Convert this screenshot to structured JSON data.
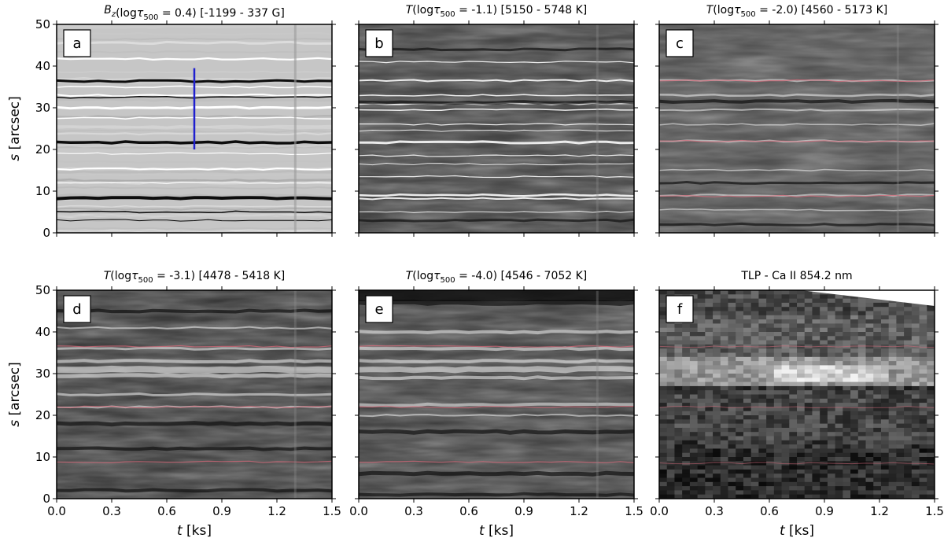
{
  "figure": {
    "y_axis_label": "s [arcsec]",
    "x_axis_label": "t [ks]"
  },
  "chart_data": [
    {
      "type": "heatmap",
      "id": "a",
      "title": "B_z(logτ_500 = 0.4) [-1199 -  337 G]",
      "title_parts": {
        "var": "B",
        "sub": "z",
        "arg": "(log",
        "tau": "τ",
        "tau_sub": "500",
        "rest": " = 0.4) [-1199 -  337 G]"
      },
      "xlabel": "t [ks]",
      "ylabel": "s [arcsec]",
      "xlim": [
        0,
        1.5
      ],
      "ylim": [
        0,
        50
      ],
      "xticks": [
        0.0,
        0.3,
        0.6,
        0.9,
        1.2,
        1.5
      ],
      "yticks": [
        0,
        10,
        20,
        30,
        40,
        50
      ],
      "colormap": "grayscale",
      "value_range": [
        -1199,
        337
      ],
      "units": "G",
      "marker_line": {
        "x": 0.75,
        "y_from": 20,
        "y_to": 39.5,
        "color": "#1f1fcf"
      }
    },
    {
      "type": "heatmap",
      "id": "b",
      "title": "T(logτ_500 = -1.1) [5150 - 5748 K]",
      "title_parts": {
        "var": "T",
        "sub": "",
        "arg": "(log",
        "tau": "τ",
        "tau_sub": "500",
        "rest": " = -1.1) [5150 - 5748 K]"
      },
      "xlabel": "t [ks]",
      "ylabel": "s [arcsec]",
      "xlim": [
        0,
        1.5
      ],
      "ylim": [
        0,
        50
      ],
      "xticks": [
        0.0,
        0.3,
        0.6,
        0.9,
        1.2,
        1.5
      ],
      "yticks": [
        0,
        10,
        20,
        30,
        40,
        50
      ],
      "colormap": "grayscale",
      "value_range": [
        5150,
        5748
      ],
      "units": "K"
    },
    {
      "type": "heatmap",
      "id": "c",
      "title": "T(logτ_500 = -2.0) [4560 - 5173 K]",
      "title_parts": {
        "var": "T",
        "sub": "",
        "arg": "(log",
        "tau": "τ",
        "tau_sub": "500",
        "rest": " = -2.0) [4560 - 5173 K]"
      },
      "xlabel": "t [ks]",
      "ylabel": "s [arcsec]",
      "xlim": [
        0,
        1.5
      ],
      "ylim": [
        0,
        50
      ],
      "xticks": [
        0.0,
        0.3,
        0.6,
        0.9,
        1.2,
        1.5
      ],
      "yticks": [
        0,
        10,
        20,
        30,
        40,
        50
      ],
      "colormap": "grayscale",
      "value_range": [
        4560,
        5173
      ],
      "units": "K"
    },
    {
      "type": "heatmap",
      "id": "d",
      "title": "T(logτ_500 = -3.1) [4478 - 5418 K]",
      "title_parts": {
        "var": "T",
        "sub": "",
        "arg": "(log",
        "tau": "τ",
        "tau_sub": "500",
        "rest": " = -3.1) [4478 - 5418 K]"
      },
      "xlabel": "t [ks]",
      "ylabel": "s [arcsec]",
      "xlim": [
        0,
        1.5
      ],
      "ylim": [
        0,
        50
      ],
      "xticks": [
        0.0,
        0.3,
        0.6,
        0.9,
        1.2,
        1.5
      ],
      "yticks": [
        0,
        10,
        20,
        30,
        40,
        50
      ],
      "colormap": "grayscale",
      "value_range": [
        4478,
        5418
      ],
      "units": "K"
    },
    {
      "type": "heatmap",
      "id": "e",
      "title": "T(logτ_500 = -4.0) [4546 - 7052 K]",
      "title_parts": {
        "var": "T",
        "sub": "",
        "arg": "(log",
        "tau": "τ",
        "tau_sub": "500",
        "rest": " = -4.0) [4546 - 7052 K]"
      },
      "xlabel": "t [ks]",
      "ylabel": "s [arcsec]",
      "xlim": [
        0,
        1.5
      ],
      "ylim": [
        0,
        50
      ],
      "xticks": [
        0.0,
        0.3,
        0.6,
        0.9,
        1.2,
        1.5
      ],
      "yticks": [
        0,
        10,
        20,
        30,
        40,
        50
      ],
      "colormap": "grayscale",
      "value_range": [
        4546,
        7052
      ],
      "units": "K"
    },
    {
      "type": "heatmap",
      "id": "f",
      "title": "TLP - Ca II 854.2 nm",
      "title_parts": null,
      "xlabel": "t [ks]",
      "ylabel": "s [arcsec]",
      "xlim": [
        0,
        1.5
      ],
      "ylim": [
        0,
        50
      ],
      "xticks": [
        0.0,
        0.3,
        0.6,
        0.9,
        1.2,
        1.5
      ],
      "yticks": [
        0,
        10,
        20,
        30,
        40,
        50
      ],
      "colormap": "grayscale"
    }
  ],
  "colors": {
    "contour_red": "#d46a7a",
    "marker_blue": "#1f1fcf"
  }
}
